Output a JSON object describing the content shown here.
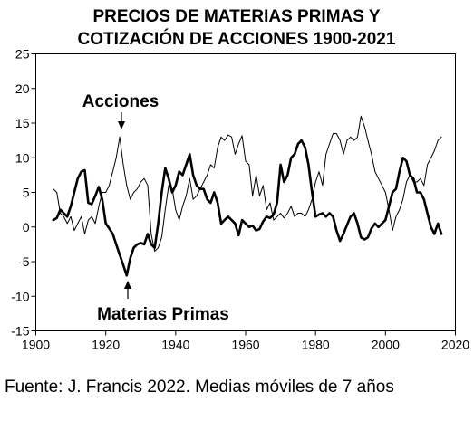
{
  "chart_data": {
    "type": "line",
    "title": [
      "PRECIOS DE MATERIAS PRIMAS Y",
      "COTIZACIÓN DE ACCIONES 1900-2021"
    ],
    "caption": "Fuente: J. Francis 2022. Medias móviles de 7 años",
    "xlabel": "",
    "ylabel": "",
    "xlim": [
      1900,
      2020
    ],
    "ylim": [
      -15,
      25
    ],
    "x_ticks": [
      1900,
      1920,
      1940,
      1960,
      1980,
      2000,
      2020
    ],
    "y_ticks": [
      -15,
      -10,
      -5,
      0,
      5,
      10,
      15,
      20,
      25
    ],
    "grid": false,
    "legend": "none",
    "series": [
      {
        "label": "Materias Primas",
        "style": "thick",
        "color": "#000000",
        "x": [
          1905,
          1906,
          1907,
          1908,
          1909,
          1910,
          1911,
          1912,
          1913,
          1914,
          1915,
          1916,
          1917,
          1918,
          1919,
          1920,
          1921,
          1922,
          1923,
          1924,
          1925,
          1926,
          1927,
          1928,
          1929,
          1930,
          1931,
          1932,
          1933,
          1934,
          1935,
          1936,
          1937,
          1938,
          1939,
          1940,
          1941,
          1942,
          1943,
          1944,
          1945,
          1946,
          1947,
          1948,
          1949,
          1950,
          1951,
          1952,
          1953,
          1954,
          1955,
          1956,
          1957,
          1958,
          1959,
          1960,
          1961,
          1962,
          1963,
          1964,
          1965,
          1966,
          1967,
          1968,
          1969,
          1970,
          1971,
          1972,
          1973,
          1974,
          1975,
          1976,
          1977,
          1978,
          1979,
          1980,
          1981,
          1982,
          1983,
          1984,
          1985,
          1986,
          1987,
          1988,
          1989,
          1990,
          1991,
          1992,
          1993,
          1994,
          1995,
          1996,
          1997,
          1998,
          1999,
          2000,
          2001,
          2002,
          2003,
          2004,
          2005,
          2006,
          2007,
          2008,
          2009,
          2010,
          2011,
          2012,
          2013,
          2014,
          2015,
          2016
        ],
        "y": [
          1.0,
          1.3,
          2.5,
          2.0,
          1.5,
          3.0,
          5.0,
          7.0,
          8.0,
          8.2,
          3.5,
          3.3,
          4.5,
          5.8,
          4.0,
          0.5,
          -0.2,
          -1.0,
          -2.5,
          -4.0,
          -5.5,
          -7.0,
          -4.5,
          -3.0,
          -2.5,
          -2.3,
          -2.5,
          -1.0,
          -2.5,
          -3.0,
          0.5,
          5.0,
          8.5,
          7.0,
          5.0,
          6.0,
          8.0,
          7.5,
          9.0,
          10.5,
          7.5,
          6.0,
          5.5,
          5.5,
          4.0,
          3.5,
          5.0,
          3.5,
          0.5,
          1.0,
          1.5,
          1.0,
          0.5,
          -1.2,
          1.0,
          0.5,
          0.0,
          0.2,
          -0.5,
          -0.3,
          0.8,
          1.5,
          1.3,
          1.8,
          3.5,
          9.0,
          6.5,
          7.5,
          10.0,
          10.5,
          12.0,
          12.5,
          11.5,
          9.0,
          5.0,
          1.5,
          1.8,
          2.0,
          1.5,
          2.0,
          1.5,
          -0.5,
          -2.0,
          -1.0,
          0.3,
          1.5,
          2.0,
          0.5,
          -1.5,
          -1.8,
          -1.5,
          -0.2,
          0.5,
          0.0,
          0.5,
          1.0,
          3.0,
          5.0,
          5.5,
          8.0,
          10.0,
          9.5,
          7.5,
          7.0,
          5.0,
          5.0,
          4.0,
          2.0,
          0.0,
          -1.0,
          0.5,
          -1.0
        ]
      },
      {
        "label": "Acciones",
        "style": "thin",
        "color": "#000000",
        "x": [
          1905,
          1906,
          1907,
          1908,
          1909,
          1910,
          1911,
          1912,
          1913,
          1914,
          1915,
          1916,
          1917,
          1918,
          1919,
          1920,
          1921,
          1922,
          1923,
          1924,
          1925,
          1926,
          1927,
          1928,
          1929,
          1930,
          1931,
          1932,
          1933,
          1934,
          1935,
          1936,
          1937,
          1938,
          1939,
          1940,
          1941,
          1942,
          1943,
          1944,
          1945,
          1946,
          1947,
          1948,
          1949,
          1950,
          1951,
          1952,
          1953,
          1954,
          1955,
          1956,
          1957,
          1958,
          1959,
          1960,
          1961,
          1962,
          1963,
          1964,
          1965,
          1966,
          1967,
          1968,
          1969,
          1970,
          1971,
          1972,
          1973,
          1974,
          1975,
          1976,
          1977,
          1978,
          1979,
          1980,
          1981,
          1982,
          1983,
          1984,
          1985,
          1986,
          1987,
          1988,
          1989,
          1990,
          1991,
          1992,
          1993,
          1994,
          1995,
          1996,
          1997,
          1998,
          1999,
          2000,
          2001,
          2002,
          2003,
          2004,
          2005,
          2006,
          2007,
          2008,
          2009,
          2010,
          2011,
          2012,
          2013,
          2014,
          2015,
          2016
        ],
        "y": [
          5.5,
          5.0,
          2.0,
          1.5,
          0.5,
          1.5,
          -0.5,
          0.5,
          1.5,
          -1.0,
          1.0,
          1.5,
          0.5,
          3.0,
          5.0,
          5.0,
          6.0,
          8.0,
          10.0,
          13.0,
          9.0,
          6.0,
          4.0,
          5.0,
          5.5,
          6.5,
          7.0,
          6.0,
          -1.0,
          -3.5,
          -3.0,
          -1.5,
          2.5,
          6.0,
          5.5,
          2.5,
          1.0,
          3.0,
          4.5,
          7.0,
          4.0,
          4.5,
          5.5,
          6.5,
          7.5,
          9.0,
          8.5,
          11.5,
          13.0,
          12.5,
          13.3,
          13.0,
          10.5,
          12.0,
          13.2,
          9.5,
          9.0,
          4.5,
          7.5,
          4.5,
          6.0,
          2.5,
          3.5,
          1.0,
          1.5,
          2.0,
          1.3,
          2.0,
          3.0,
          1.5,
          2.0,
          2.0,
          1.5,
          2.5,
          4.0,
          6.5,
          8.0,
          6.0,
          10.5,
          12.0,
          13.5,
          13.5,
          12.5,
          10.5,
          12.5,
          13.0,
          12.5,
          13.0,
          16.0,
          14.5,
          12.5,
          10.5,
          8.0,
          7.0,
          6.0,
          5.0,
          2.5,
          -0.5,
          1.5,
          2.5,
          4.0,
          6.5,
          7.5,
          6.5,
          6.5,
          7.0,
          6.0,
          9.0,
          10.0,
          11.0,
          12.5,
          13.0
        ]
      }
    ],
    "annotations": [
      {
        "text": "Acciones",
        "series": "Acciones",
        "x": 1924,
        "y": 13
      },
      {
        "text": "Materias Primas",
        "series": "Materias Primas",
        "x": 1926,
        "y": -7
      }
    ]
  }
}
